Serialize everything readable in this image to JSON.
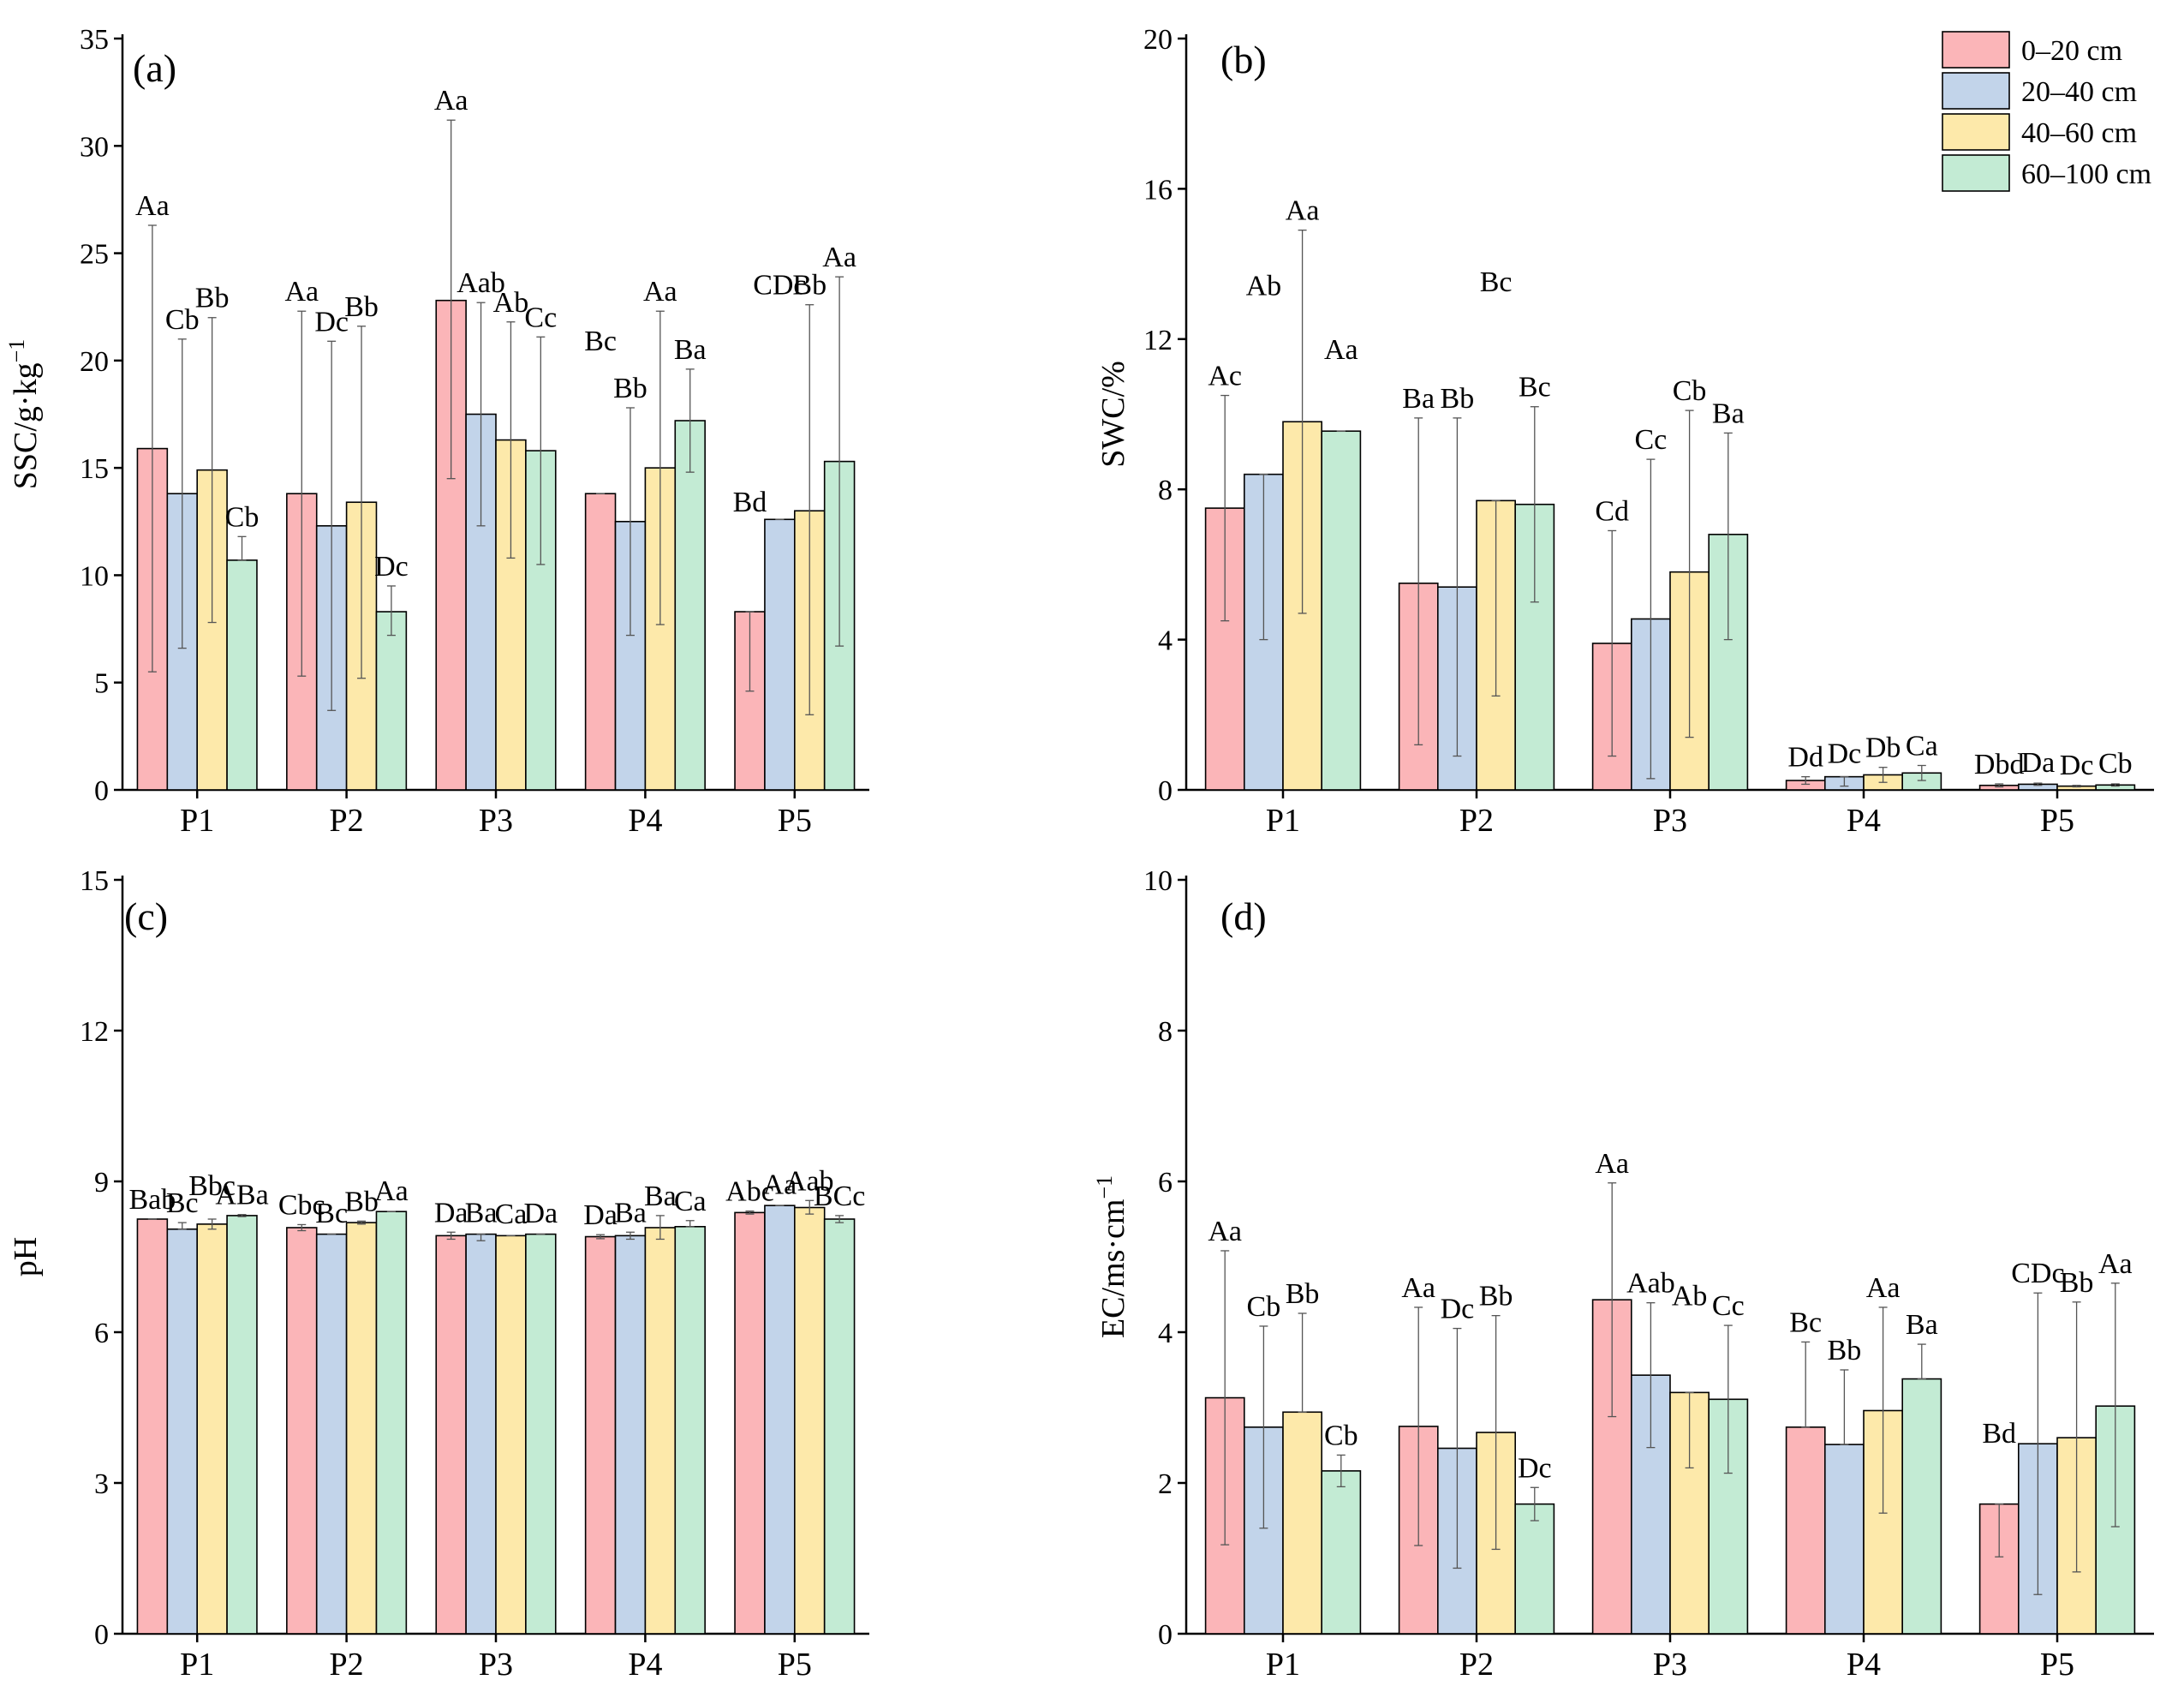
{
  "legend": {
    "items": [
      {
        "label": "0–20 cm",
        "color": "#FBB5B8"
      },
      {
        "label": "20–40 cm",
        "color": "#C2D4EA"
      },
      {
        "label": "40–60 cm",
        "color": "#FDE9AA"
      },
      {
        "label": "60–100 cm",
        "color": "#C3EBD4"
      }
    ]
  },
  "chart_data": [
    {
      "id": "a",
      "type": "bar",
      "panel_label": "(a)",
      "ylabel": "SSC/g·kg",
      "ylabel_sup": "−1",
      "ylim": [
        0,
        35
      ],
      "yticks": [
        0,
        5,
        10,
        15,
        20,
        25,
        30,
        35
      ],
      "ytick_labels": [
        "0",
        "5",
        "10",
        "15",
        "20",
        "25",
        "30",
        "35"
      ],
      "categories": [
        "P1",
        "P2",
        "P3",
        "P4",
        "P5"
      ],
      "series": [
        {
          "name": "0–20 cm",
          "values": [
            15.9,
            13.8,
            22.8,
            13.8,
            8.3
          ],
          "err_low": [
            5.5,
            5.3,
            14.5,
            13.8,
            4.6
          ],
          "err_high": [
            26.3,
            22.3,
            31.2,
            13.8,
            8.3
          ],
          "labels": [
            "Aa",
            "Aa",
            "Aa",
            "Bc",
            "Bd"
          ],
          "label_y": [
            26.3,
            22.3,
            31.2,
            20.0,
            12.5
          ]
        },
        {
          "name": "20–40 cm",
          "values": [
            13.8,
            12.3,
            17.5,
            12.5,
            12.6
          ],
          "err_low": [
            6.6,
            3.7,
            12.3,
            7.2,
            12.6
          ],
          "err_high": [
            21.0,
            20.9,
            22.7,
            17.8,
            12.6
          ],
          "labels": [
            "Cb",
            "Dc",
            "Aab",
            "Bb",
            "CDc"
          ],
          "label_y": [
            21.0,
            20.9,
            22.7,
            17.8,
            22.6
          ]
        },
        {
          "name": "40–60 cm",
          "values": [
            14.9,
            13.4,
            16.3,
            15.0,
            13.0
          ],
          "err_low": [
            7.8,
            5.2,
            10.8,
            7.7,
            3.5
          ],
          "err_high": [
            22.0,
            21.6,
            21.8,
            22.3,
            22.6
          ],
          "labels": [
            "Bb",
            "Bb",
            "Ab",
            "Aa",
            "Bb"
          ],
          "label_y": [
            22.0,
            21.6,
            21.8,
            22.3,
            22.6
          ]
        },
        {
          "name": "60–100 cm",
          "values": [
            10.7,
            8.3,
            15.8,
            17.2,
            15.3
          ],
          "err_low": [
            10.7,
            7.2,
            10.5,
            14.8,
            6.7
          ],
          "err_high": [
            11.8,
            9.5,
            21.1,
            19.6,
            23.9
          ],
          "labels": [
            "Cb",
            "Dc",
            "Cc",
            "Ba",
            "Aa"
          ],
          "label_y": [
            11.8,
            9.5,
            21.1,
            19.6,
            23.9
          ]
        }
      ]
    },
    {
      "id": "b",
      "type": "bar",
      "panel_label": "(b)",
      "ylabel": "SWC/%",
      "ylabel_sup": "",
      "ylim": [
        0,
        20
      ],
      "yticks": [
        0,
        4,
        8,
        12,
        16,
        20
      ],
      "ytick_labels": [
        "0",
        "4",
        "8",
        "12",
        "16",
        "20"
      ],
      "categories": [
        "P1",
        "P2",
        "P3",
        "P4",
        "P5"
      ],
      "series": [
        {
          "name": "0–20 cm",
          "values": [
            7.5,
            5.5,
            3.9,
            0.25,
            0.12
          ],
          "err_low": [
            4.5,
            1.2,
            0.9,
            0.15,
            0.08
          ],
          "err_high": [
            10.5,
            9.9,
            6.9,
            0.35,
            0.16
          ],
          "labels": [
            "Ac",
            "Ba",
            "Cd",
            "Dd",
            "Dbd"
          ],
          "label_y": [
            10.5,
            9.9,
            6.9,
            0.35,
            0.16
          ]
        },
        {
          "name": "20–40 cm",
          "values": [
            8.4,
            5.4,
            4.55,
            0.35,
            0.15
          ],
          "err_low": [
            4.0,
            0.9,
            0.3,
            0.1,
            0.12
          ],
          "err_high": [
            8.4,
            9.9,
            8.8,
            0.35,
            0.18
          ],
          "labels": [
            "Ab",
            "Bb",
            "Cc",
            "Dc",
            "Da"
          ],
          "label_y": [
            12.9,
            9.9,
            8.8,
            0.45,
            0.2
          ]
        },
        {
          "name": "40–60 cm",
          "values": [
            9.8,
            7.7,
            5.8,
            0.4,
            0.1
          ],
          "err_low": [
            4.7,
            2.5,
            1.4,
            0.2,
            0.08
          ],
          "err_high": [
            14.9,
            7.7,
            10.1,
            0.6,
            0.12
          ],
          "labels": [
            "Aa",
            "Bc",
            "Cb",
            "Db",
            "Dc"
          ],
          "label_y": [
            14.9,
            13.0,
            10.1,
            0.6,
            0.14
          ]
        },
        {
          "name": "60–100 cm",
          "values": [
            9.55,
            7.6,
            6.8,
            0.45,
            0.13
          ],
          "err_low": [
            9.55,
            5.0,
            4.0,
            0.25,
            0.1
          ],
          "err_high": [
            9.55,
            10.2,
            9.5,
            0.65,
            0.16
          ],
          "labels": [
            "Aa",
            "Bc",
            "Ba",
            "Ca",
            "Cb"
          ],
          "label_y": [
            11.2,
            10.2,
            9.5,
            0.65,
            0.18
          ]
        }
      ]
    },
    {
      "id": "c",
      "type": "bar",
      "panel_label": "(c)",
      "ylabel": "pH",
      "ylabel_sup": "",
      "ylim": [
        0,
        15
      ],
      "yticks": [
        0,
        3,
        6,
        9,
        12,
        15
      ],
      "ytick_labels": [
        "0",
        "3",
        "6",
        "9",
        "12",
        "15"
      ],
      "categories": [
        "P1",
        "P2",
        "P3",
        "P4",
        "P5"
      ],
      "series": [
        {
          "name": "0–20 cm",
          "values": [
            8.25,
            8.08,
            7.92,
            7.9,
            8.38
          ],
          "err_low": [
            8.25,
            8.02,
            7.85,
            7.86,
            8.35
          ],
          "err_high": [
            8.25,
            8.14,
            7.99,
            7.94,
            8.41
          ],
          "labels": [
            "Bab",
            "Cbc",
            "Da",
            "Da",
            "Abc"
          ],
          "label_y": [
            8.25,
            8.14,
            7.99,
            7.94,
            8.41
          ]
        },
        {
          "name": "20–40 cm",
          "values": [
            8.05,
            7.95,
            7.95,
            7.92,
            8.52
          ],
          "err_low": [
            8.05,
            7.95,
            7.82,
            7.85,
            8.52
          ],
          "err_high": [
            8.18,
            7.95,
            7.95,
            7.99,
            8.52
          ],
          "labels": [
            "Bc",
            "Bc",
            "Ba",
            "Ba",
            "Aa"
          ],
          "label_y": [
            8.18,
            7.98,
            7.99,
            7.99,
            8.55
          ]
        },
        {
          "name": "40–60 cm",
          "values": [
            8.15,
            8.18,
            7.92,
            8.08,
            8.48
          ],
          "err_low": [
            8.05,
            8.15,
            7.92,
            7.85,
            8.35
          ],
          "err_high": [
            8.25,
            8.21,
            7.92,
            8.32,
            8.62
          ],
          "labels": [
            "Bbc",
            "Bb",
            "Ca",
            "Ba",
            "Aab"
          ],
          "label_y": [
            8.52,
            8.21,
            7.96,
            8.32,
            8.62
          ]
        },
        {
          "name": "60–100 cm",
          "values": [
            8.32,
            8.4,
            7.95,
            8.1,
            8.25
          ],
          "err_low": [
            8.3,
            8.4,
            7.95,
            8.1,
            8.18
          ],
          "err_high": [
            8.34,
            8.4,
            7.95,
            8.22,
            8.32
          ],
          "labels": [
            "ABa",
            "Aa",
            "Da",
            "Ca",
            "BCc"
          ],
          "label_y": [
            8.34,
            8.42,
            7.98,
            8.22,
            8.32
          ]
        }
      ]
    },
    {
      "id": "d",
      "type": "bar",
      "panel_label": "(d)",
      "ylabel": "EC/ms·cm",
      "ylabel_sup": "−1",
      "ylim": [
        0,
        10
      ],
      "yticks": [
        0,
        2,
        4,
        6,
        8,
        10
      ],
      "ytick_labels": [
        "0",
        "2",
        "4",
        "6",
        "8",
        "10"
      ],
      "categories": [
        "P1",
        "P2",
        "P3",
        "P4",
        "P5"
      ],
      "series": [
        {
          "name": "0–20 cm",
          "values": [
            3.13,
            2.75,
            4.43,
            2.74,
            1.72
          ],
          "err_low": [
            1.18,
            1.17,
            2.88,
            2.74,
            1.02
          ],
          "err_high": [
            5.08,
            4.33,
            5.98,
            3.87,
            1.72
          ],
          "labels": [
            "Aa",
            "Aa",
            "Aa",
            "Bc",
            "Bd"
          ],
          "label_y": [
            5.08,
            4.33,
            5.98,
            3.87,
            2.4
          ]
        },
        {
          "name": "20–40 cm",
          "values": [
            2.74,
            2.46,
            3.43,
            2.51,
            2.52
          ],
          "err_low": [
            1.4,
            0.87,
            2.47,
            2.51,
            0.52
          ],
          "err_high": [
            4.08,
            4.05,
            4.39,
            3.5,
            4.52
          ],
          "labels": [
            "Cb",
            "Dc",
            "Aab",
            "Bb",
            "CDc"
          ],
          "label_y": [
            4.08,
            4.05,
            4.39,
            3.5,
            4.52
          ]
        },
        {
          "name": "40–60 cm",
          "values": [
            2.94,
            2.67,
            3.2,
            2.96,
            2.6
          ],
          "err_low": [
            2.94,
            1.12,
            2.2,
            1.6,
            0.82
          ],
          "err_high": [
            4.25,
            4.22,
            3.2,
            4.33,
            4.4
          ],
          "labels": [
            "Bb",
            "Bb",
            "Ab",
            "Aa",
            "Bb"
          ],
          "label_y": [
            4.25,
            4.22,
            4.22,
            4.33,
            4.4
          ]
        },
        {
          "name": "60–100 cm",
          "values": [
            2.16,
            1.72,
            3.11,
            3.38,
            3.02
          ],
          "err_low": [
            1.95,
            1.5,
            2.13,
            3.38,
            1.42
          ],
          "err_high": [
            2.37,
            1.94,
            4.09,
            3.84,
            4.65
          ],
          "labels": [
            "Cb",
            "Dc",
            "Cc",
            "Ba",
            "Aa"
          ],
          "label_y": [
            2.37,
            1.94,
            4.09,
            3.84,
            4.65
          ]
        }
      ]
    }
  ]
}
